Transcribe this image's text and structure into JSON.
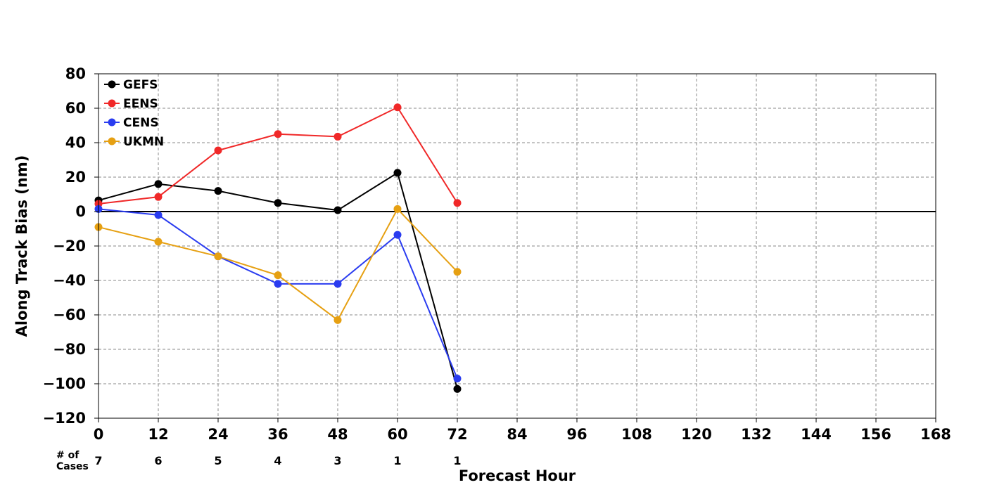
{
  "chart_data": {
    "type": "line",
    "title": "",
    "xlabel": "Forecast Hour",
    "ylabel": "Along Track Bias (nm)",
    "xlim": [
      0,
      168
    ],
    "ylim": [
      -120,
      80
    ],
    "xticks": [
      0,
      12,
      24,
      36,
      48,
      60,
      72,
      84,
      96,
      108,
      120,
      132,
      144,
      156,
      168
    ],
    "yticks": [
      -120,
      -100,
      -80,
      -60,
      -40,
      -20,
      0,
      20,
      40,
      60,
      80
    ],
    "ytick_labels": [
      "−120",
      "−100",
      "−80",
      "−60",
      "−40",
      "−20",
      "0",
      "20",
      "40",
      "60",
      "80"
    ],
    "grid": true,
    "legend_position": "top-left",
    "zero_line": true,
    "series": [
      {
        "name": "GEFS",
        "color": "#000000",
        "x": [
          0,
          12,
          24,
          36,
          48,
          60,
          72
        ],
        "values": [
          6.5,
          16,
          12,
          5,
          0.8,
          22.5,
          -103
        ]
      },
      {
        "name": "EENS",
        "color": "#f02828",
        "x": [
          0,
          12,
          24,
          36,
          48,
          60,
          72
        ],
        "values": [
          4.5,
          8.5,
          35.5,
          45,
          43.5,
          60.5,
          5
        ]
      },
      {
        "name": "CENS",
        "color": "#2a3cf0",
        "x": [
          0,
          12,
          24,
          36,
          48,
          60,
          72
        ],
        "values": [
          1.5,
          -2,
          -26,
          -42,
          -42,
          -13.5,
          -97
        ]
      },
      {
        "name": "UKMN",
        "color": "#e6a012",
        "x": [
          0,
          12,
          24,
          36,
          48,
          60,
          72
        ],
        "values": [
          -9,
          -17.5,
          -26,
          -37,
          -63,
          1.5,
          -35
        ]
      }
    ],
    "cases": {
      "label": "# of\nCases",
      "x": [
        0,
        12,
        24,
        36,
        48,
        60,
        72
      ],
      "values": [
        "7",
        "6",
        "5",
        "4",
        "3",
        "1",
        "1"
      ]
    }
  }
}
